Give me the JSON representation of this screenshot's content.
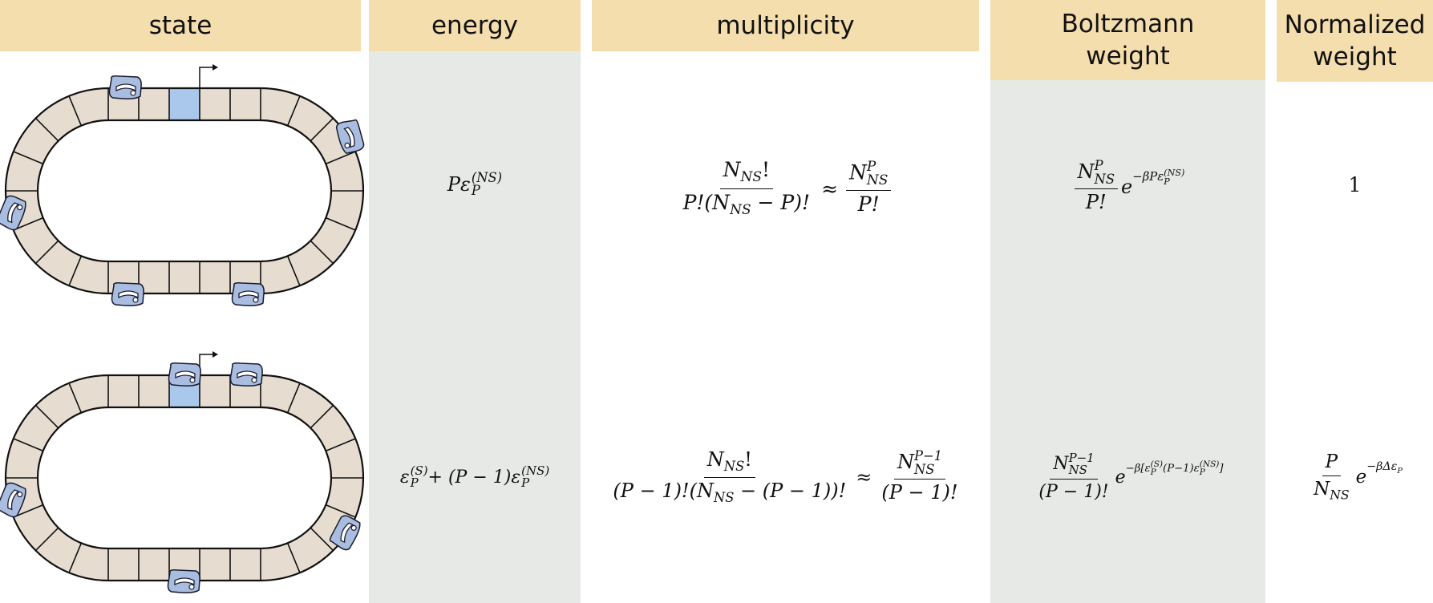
{
  "headers": {
    "state": "state",
    "energy": "energy",
    "multiplicity": "multiplicity",
    "boltzmann_line1": "Boltzmann",
    "boltzmann_line2": "weight",
    "normalized_line1": "Normalized",
    "normalized_line2": "weight"
  },
  "rows": [
    {
      "energy": {
        "prefix": "P",
        "eps": "ε",
        "sub": "P",
        "sup": "(NS)"
      },
      "multiplicity": {
        "num": "N",
        "num_sub": "NS",
        "num_tail": "!",
        "den": "P!(N",
        "den_sub": "NS",
        "den_tail": " − P)!",
        "approx": "≈",
        "rnum": "N",
        "rnum_sub": "NS",
        "rnum_sup": "P",
        "rden": "P!"
      },
      "boltzmann": {
        "num": "N",
        "num_sub": "NS",
        "num_sup": "P",
        "den": "P!",
        "exp": "e",
        "exp_sup": "−βPε",
        "exp_sup_sub": "P",
        "exp_sup_sup": "(NS)"
      },
      "normalized": "1"
    },
    {
      "energy": {
        "eps": "ε",
        "sub": "P",
        "sup": "(S)",
        "mid": " + (P − 1)ε",
        "sub2": "P",
        "sup2": "(NS)"
      },
      "multiplicity": {
        "num": "N",
        "num_sub": "NS",
        "num_tail": "!",
        "den": "(P − 1)!(N",
        "den_sub": "NS",
        "den_tail": " − (P − 1))!",
        "approx": "≈",
        "rnum": "N",
        "rnum_sub": "NS",
        "rnum_sup": "P−1",
        "rden": "(P − 1)!"
      },
      "boltzmann": {
        "num": "N",
        "num_sub": "NS",
        "num_sup": "P−1",
        "den": "(P − 1)!",
        "exp": "e",
        "exp_sup": "−β[ε",
        "exp_sup_sub": "P",
        "exp_sup_sup": "(S)",
        "exp_sup_tail": "(P−1)ε",
        "exp_sup_sub2": "P",
        "exp_sup_sup2": "(NS)",
        "exp_sup_end": "]"
      },
      "normalized": {
        "num": "P",
        "den": "N",
        "den_sub": "NS",
        "exp": "e",
        "exp_sup": "−βΔε",
        "exp_sup_sub": "P"
      }
    }
  ],
  "colors": {
    "header_bg": "#f5deae",
    "column_bg": "#e7e9e6",
    "segment_fill": "#e6ddd0",
    "promoter_fill": "#a9c8eb",
    "polymerase_fill": "#a9bde0"
  }
}
